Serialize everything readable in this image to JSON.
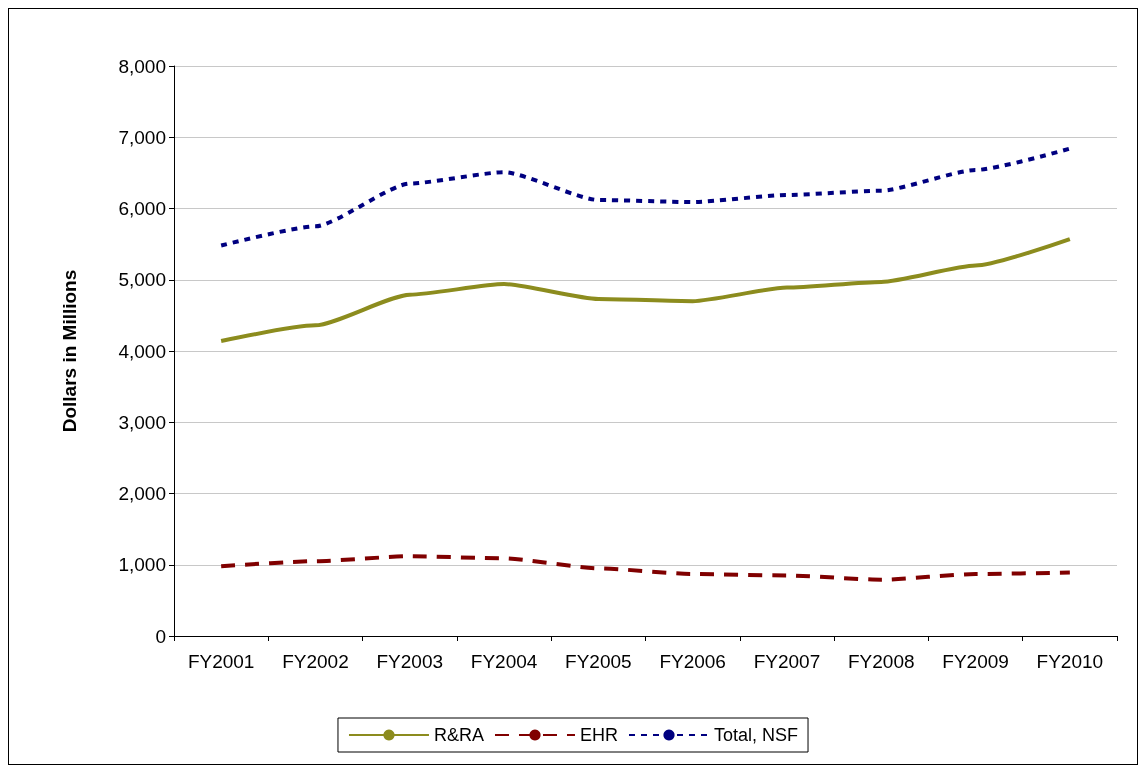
{
  "chart_data": {
    "type": "line",
    "ylabel": "Dollars in Millions",
    "categories": [
      "FY2001",
      "FY2002",
      "FY2003",
      "FY2004",
      "FY2005",
      "FY2006",
      "FY2007",
      "FY2008",
      "FY2009",
      "FY2010"
    ],
    "series": [
      {
        "name": "R&RA",
        "color": "#8c8c1e",
        "line_style": "solid",
        "values": [
          4140,
          4360,
          4790,
          4940,
          4730,
          4700,
          4890,
          4970,
          5200,
          5570
        ]
      },
      {
        "name": "EHR",
        "color": "#800000",
        "line_style": "dashed",
        "values": [
          980,
          1050,
          1120,
          1090,
          950,
          870,
          850,
          790,
          870,
          890
        ]
      },
      {
        "name": "Total, NSF",
        "color": "#000080",
        "line_style": "dotted",
        "values": [
          5480,
          5750,
          6350,
          6510,
          6120,
          6090,
          6190,
          6250,
          6540,
          6840
        ]
      }
    ],
    "ylim": [
      0,
      8000
    ],
    "yticks": [
      0,
      {
        "value": 1000,
        "label": "1,000"
      },
      {
        "value": 2000,
        "label": "2,000"
      },
      {
        "value": 3000,
        "label": "3,000"
      },
      {
        "value": 4000,
        "label": "4,000"
      },
      {
        "value": 5000,
        "label": "5,000"
      },
      {
        "value": 6000,
        "label": "6,000"
      },
      {
        "value": 7000,
        "label": "7,000"
      },
      {
        "value": 8000,
        "label": "8,000"
      }
    ],
    "grid": "y",
    "legend": "bottom",
    "marker": "none"
  }
}
